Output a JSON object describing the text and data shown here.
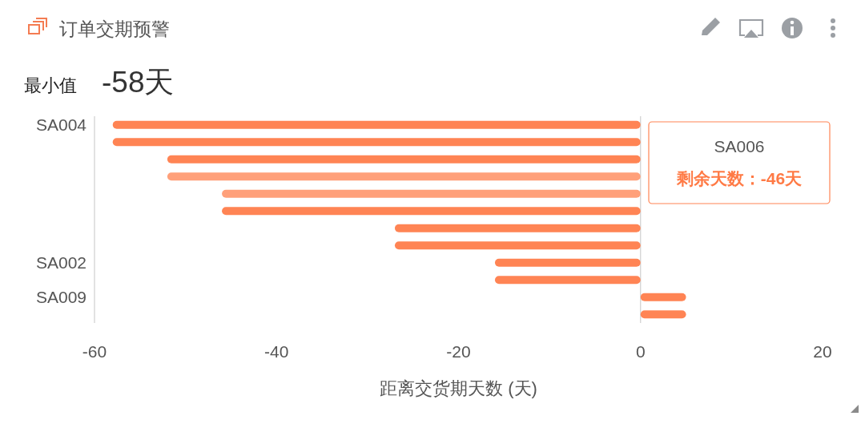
{
  "chart_data": {
    "type": "bar",
    "orientation": "horizontal",
    "title": "订单交期预警",
    "xlabel": "距离交货期天数 (天)",
    "annotations": [
      "最小值",
      "-58天",
      "SA006\n剩余天数：-46天"
    ],
    "categories": [
      "SA004",
      null,
      null,
      null,
      null,
      null,
      null,
      null,
      "SA002",
      null,
      "SA009",
      null
    ],
    "values": [
      -58,
      -58,
      -52,
      -52,
      -46,
      -46,
      -27,
      -27,
      -16,
      -16,
      5,
      5
    ],
    "colors": [
      "#ff8454",
      "#ff8454",
      "#ff8454",
      "#ffa07a",
      "#ffa07a",
      "#ff8454",
      "#ff8454",
      "#ff8454",
      "#ff8454",
      "#ff8454",
      "#ff8454",
      "#ff8454"
    ],
    "xlim": [
      -60,
      20
    ],
    "xticks": [
      -60,
      -40,
      -20,
      0,
      20
    ],
    "ref_lines": [
      {
        "axis": "x",
        "value": 0,
        "color": "#cfcfcf"
      }
    ]
  }
}
